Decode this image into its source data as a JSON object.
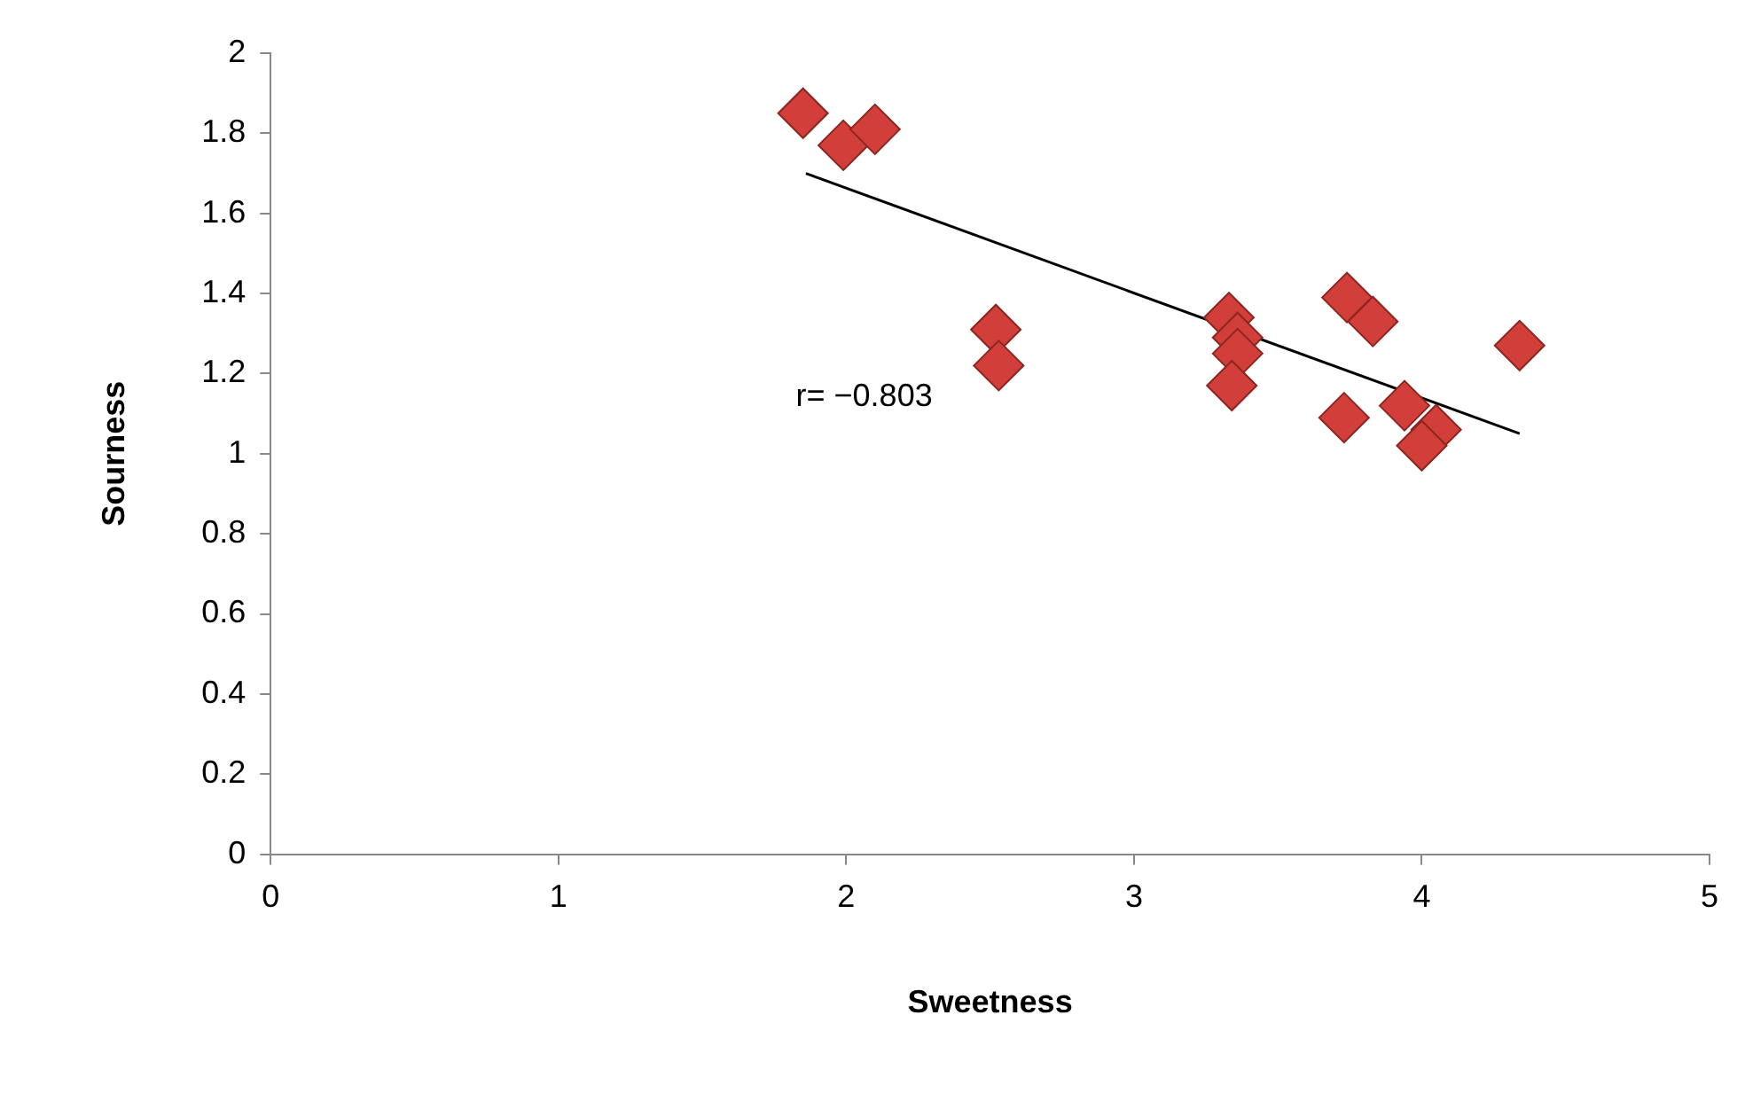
{
  "chart_data": {
    "type": "scatter",
    "xlabel": "Sweetness",
    "ylabel": "Sourness",
    "xlim": [
      0,
      5
    ],
    "xticks": [
      0,
      1,
      2,
      3,
      4,
      5
    ],
    "ylim": [
      0,
      2
    ],
    "yticks": [
      0,
      0.2,
      0.4,
      0.6,
      0.8,
      1,
      1.2,
      1.4,
      1.6,
      1.8,
      2
    ],
    "marker": "diamond",
    "legend": false,
    "grid": false,
    "series": [
      {
        "color": "#d23f3a",
        "x": [
          1.85,
          1.99,
          2.1,
          2.52,
          2.53,
          3.33,
          3.36,
          3.36,
          3.34,
          3.73,
          3.74,
          3.83,
          3.94,
          4.05,
          4.0,
          4.34
        ],
        "values": [
          1.85,
          1.77,
          1.81,
          1.31,
          1.22,
          1.34,
          1.29,
          1.25,
          1.17,
          1.09,
          1.39,
          1.33,
          1.12,
          1.06,
          1.02,
          1.27
        ]
      },
      {
        "type": "line",
        "marker": "none",
        "color": "#000000",
        "x": [
          1.86,
          4.34
        ],
        "values": [
          1.7,
          1.05
        ]
      }
    ],
    "annotations": [
      "r= −0.803"
    ]
  }
}
